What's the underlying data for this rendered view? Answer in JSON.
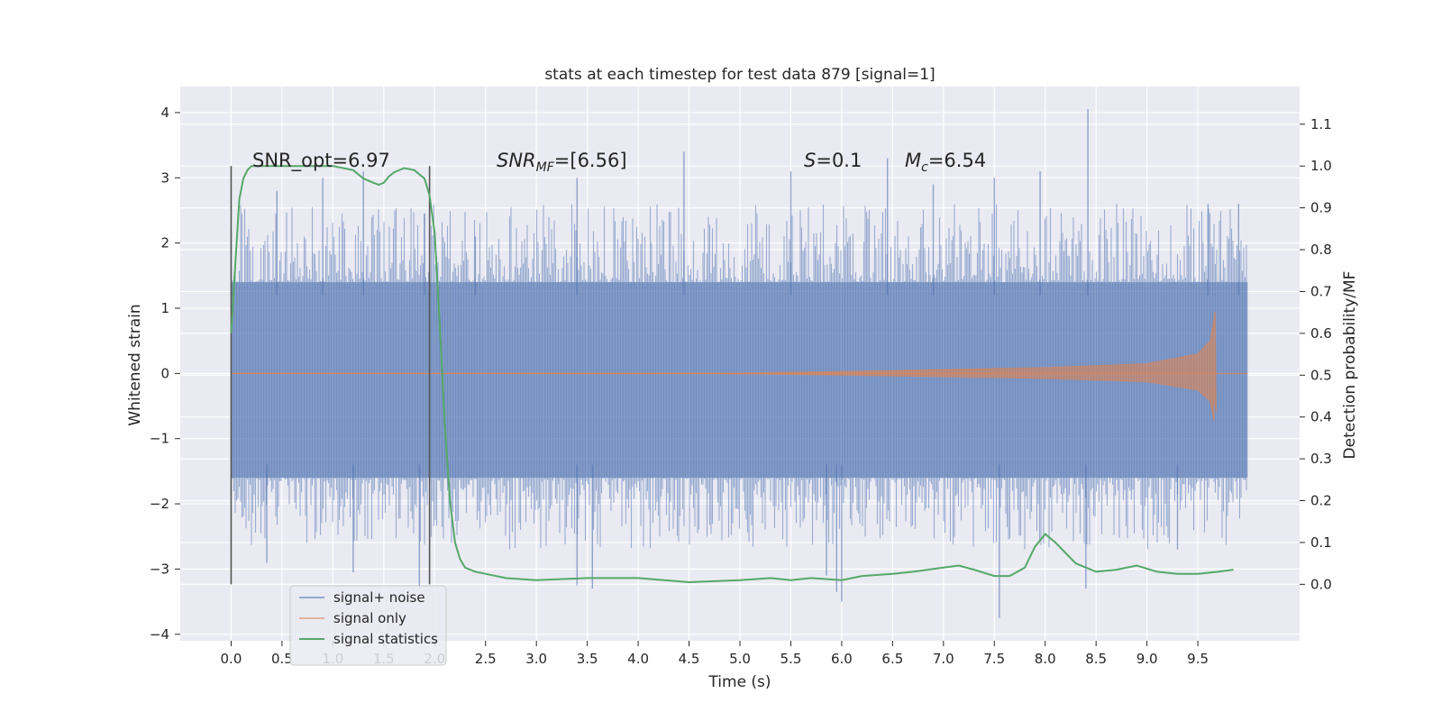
{
  "chart_data": {
    "type": "line",
    "title": "stats at each timestep for test data 879 [signal=1]",
    "xlabel": "Time (s)",
    "ylabel": "Whitened strain",
    "y2label": "Detection probability/MF",
    "xlim": [
      -0.5,
      10.5
    ],
    "ylim": [
      -4.1,
      4.4
    ],
    "y2lim": [
      -0.135,
      1.19
    ],
    "xticks": [
      "0.0",
      "0.5",
      "1.0",
      "1.5",
      "2.0",
      "2.5",
      "3.0",
      "3.5",
      "4.0",
      "4.5",
      "5.0",
      "5.5",
      "6.0",
      "6.5",
      "7.0",
      "7.5",
      "8.0",
      "8.5",
      "9.0",
      "9.5"
    ],
    "yticks": [
      "4",
      "3",
      "2",
      "1",
      "0",
      "−1",
      "−2",
      "−3",
      "−4"
    ],
    "y2ticks": [
      "1.1",
      "1.0",
      "0.9",
      "0.8",
      "0.7",
      "0.6",
      "0.5",
      "0.4",
      "0.3",
      "0.2",
      "0.1",
      "0.0"
    ],
    "grid": true,
    "legend_position": "lower-left",
    "annotations": {
      "snr_opt": "SNR_opt=6.97",
      "snr_mf_pre": "SNR",
      "snr_mf_sub": "MF",
      "snr_mf_post": "=[6.56]",
      "s_pre": "S",
      "s_post": "=0.1",
      "mc_pre": "M",
      "mc_sub": "c",
      "mc_post": "=6.54"
    },
    "vertical_markers": [
      0.0,
      1.95
    ],
    "series": [
      {
        "name": "signal+ noise",
        "color": "#4c72b0",
        "kind": "noise",
        "x_range": [
          0.0,
          9.99
        ],
        "band": [
          -1.6,
          1.4
        ],
        "peaks_high": [
          [
            0.0,
            2.2
          ],
          [
            0.45,
            2.8
          ],
          [
            0.9,
            3.0
          ],
          [
            1.3,
            3.1
          ],
          [
            1.9,
            2.45
          ],
          [
            2.4,
            2.1
          ],
          [
            3.4,
            3.0
          ],
          [
            4.45,
            3.4
          ],
          [
            5.5,
            3.1
          ],
          [
            6.45,
            3.3
          ],
          [
            6.9,
            2.9
          ],
          [
            7.5,
            3.0
          ],
          [
            7.95,
            3.1
          ],
          [
            8.42,
            4.05
          ],
          [
            9.6,
            2.6
          ],
          [
            9.9,
            2.6
          ]
        ],
        "peaks_low": [
          [
            0.35,
            -2.9
          ],
          [
            1.2,
            -3.05
          ],
          [
            1.85,
            -3.3
          ],
          [
            3.4,
            -3.25
          ],
          [
            3.55,
            -3.3
          ],
          [
            5.85,
            -3.1
          ],
          [
            5.95,
            -3.35
          ],
          [
            6.0,
            -3.5
          ],
          [
            7.55,
            -3.75
          ],
          [
            8.4,
            -3.3
          ],
          [
            9.3,
            -2.7
          ]
        ]
      },
      {
        "name": "signal only",
        "color": "#dd8452",
        "kind": "chirp",
        "x_range": [
          0.0,
          9.99
        ],
        "merger_time": 9.68,
        "envelope": [
          [
            5.0,
            0.005
          ],
          [
            6.0,
            0.03
          ],
          [
            7.0,
            0.06
          ],
          [
            8.0,
            0.09
          ],
          [
            9.0,
            0.15
          ],
          [
            9.5,
            0.3
          ],
          [
            9.62,
            0.5
          ],
          [
            9.67,
            0.95
          ],
          [
            9.68,
            -0.6
          ]
        ]
      },
      {
        "name": "signal statistics",
        "color": "#55a868",
        "kind": "line",
        "axis": "right",
        "x": [
          0.0,
          0.05,
          0.08,
          0.12,
          0.16,
          0.2,
          0.3,
          0.5,
          0.8,
          1.0,
          1.1,
          1.2,
          1.3,
          1.4,
          1.45,
          1.5,
          1.55,
          1.6,
          1.7,
          1.8,
          1.9,
          1.95,
          2.0,
          2.05,
          2.1,
          2.15,
          2.2,
          2.25,
          2.3,
          2.4,
          2.5,
          2.7,
          3.0,
          3.5,
          4.0,
          4.5,
          5.0,
          5.3,
          5.5,
          5.7,
          6.0,
          6.2,
          6.5,
          6.7,
          7.0,
          7.15,
          7.3,
          7.5,
          7.65,
          7.8,
          7.9,
          8.0,
          8.1,
          8.3,
          8.5,
          8.7,
          8.9,
          9.1,
          9.3,
          9.5,
          9.7,
          9.85
        ],
        "y": [
          0.6,
          0.8,
          0.92,
          0.97,
          0.99,
          1.0,
          1.0,
          1.0,
          1.0,
          1.0,
          0.995,
          0.99,
          0.97,
          0.96,
          0.955,
          0.96,
          0.975,
          0.985,
          0.995,
          0.99,
          0.97,
          0.93,
          0.84,
          0.62,
          0.38,
          0.2,
          0.1,
          0.06,
          0.04,
          0.03,
          0.025,
          0.015,
          0.01,
          0.015,
          0.015,
          0.005,
          0.01,
          0.015,
          0.01,
          0.015,
          0.01,
          0.02,
          0.025,
          0.03,
          0.04,
          0.045,
          0.035,
          0.02,
          0.02,
          0.04,
          0.09,
          0.12,
          0.1,
          0.05,
          0.03,
          0.035,
          0.045,
          0.03,
          0.025,
          0.025,
          0.03,
          0.035
        ]
      }
    ]
  }
}
